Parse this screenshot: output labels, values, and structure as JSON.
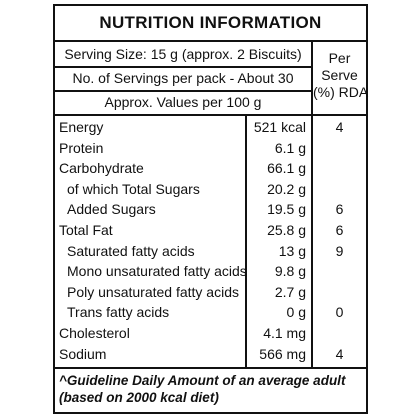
{
  "title": "NUTRITION INFORMATION",
  "serving_size": "Serving Size: 15 g (approx. 2 Biscuits)",
  "servings_per_pack": "No. of Servings per pack - About 30",
  "approx_values": "Approx. Values per 100 g",
  "rda_header": [
    "Per",
    "Serve",
    "(%) RDA"
  ],
  "rows": [
    {
      "name": "Energy",
      "value": "521 kcal",
      "rda": "4"
    },
    {
      "name": "Protein",
      "value": "6.1 g",
      "rda": ""
    },
    {
      "name": "Carbohydrate",
      "value": "66.1 g",
      "rda": ""
    },
    {
      "name": "of which Total Sugars",
      "value": "20.2 g",
      "rda": ""
    },
    {
      "name": "Added Sugars",
      "value": "19.5 g",
      "rda": "6"
    },
    {
      "name": "Total Fat",
      "value": "25.8 g",
      "rda": "6"
    },
    {
      "name": "Saturated fatty acids",
      "value": "13 g",
      "rda": "9"
    },
    {
      "name": "Mono unsaturated fatty acids",
      "value": "9.8 g",
      "rda": ""
    },
    {
      "name": "Poly unsaturated fatty acids",
      "value": "2.7 g",
      "rda": ""
    },
    {
      "name": "Trans fatty acids",
      "value": "0 g",
      "rda": "0"
    },
    {
      "name": "Cholesterol",
      "value": "4.1 mg",
      "rda": ""
    },
    {
      "name": "Sodium",
      "value": "566 mg",
      "rda": "4"
    }
  ],
  "footnote": [
    "^Guideline Daily Amount of an average adult",
    "(based on 2000 kcal diet)"
  ]
}
